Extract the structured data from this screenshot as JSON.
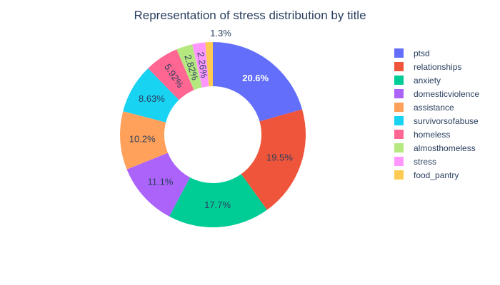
{
  "chart_data": {
    "type": "pie",
    "hole": true,
    "title": "Representation of stress distribution by title",
    "labels": [
      "ptsd",
      "relationships",
      "anxiety",
      "domesticviolence",
      "assistance",
      "survivorsofabuse",
      "homeless",
      "almosthomeless",
      "stress",
      "food_pantry"
    ],
    "values": [
      20.6,
      19.5,
      17.7,
      11.1,
      10.2,
      8.63,
      5.92,
      2.82,
      2.26,
      1.3
    ],
    "value_labels": [
      "20.6%",
      "19.5%",
      "17.7%",
      "11.1%",
      "10.2%",
      "8.63%",
      "5.92%",
      "2.82%",
      "2.26%",
      "1.3%"
    ],
    "colors": [
      "#636efa",
      "#ef553b",
      "#00cc96",
      "#ab63fa",
      "#ffa15a",
      "#19d3f3",
      "#ff6692",
      "#b6e880",
      "#ff97ff",
      "#fecb52"
    ],
    "legend_position": "right"
  }
}
